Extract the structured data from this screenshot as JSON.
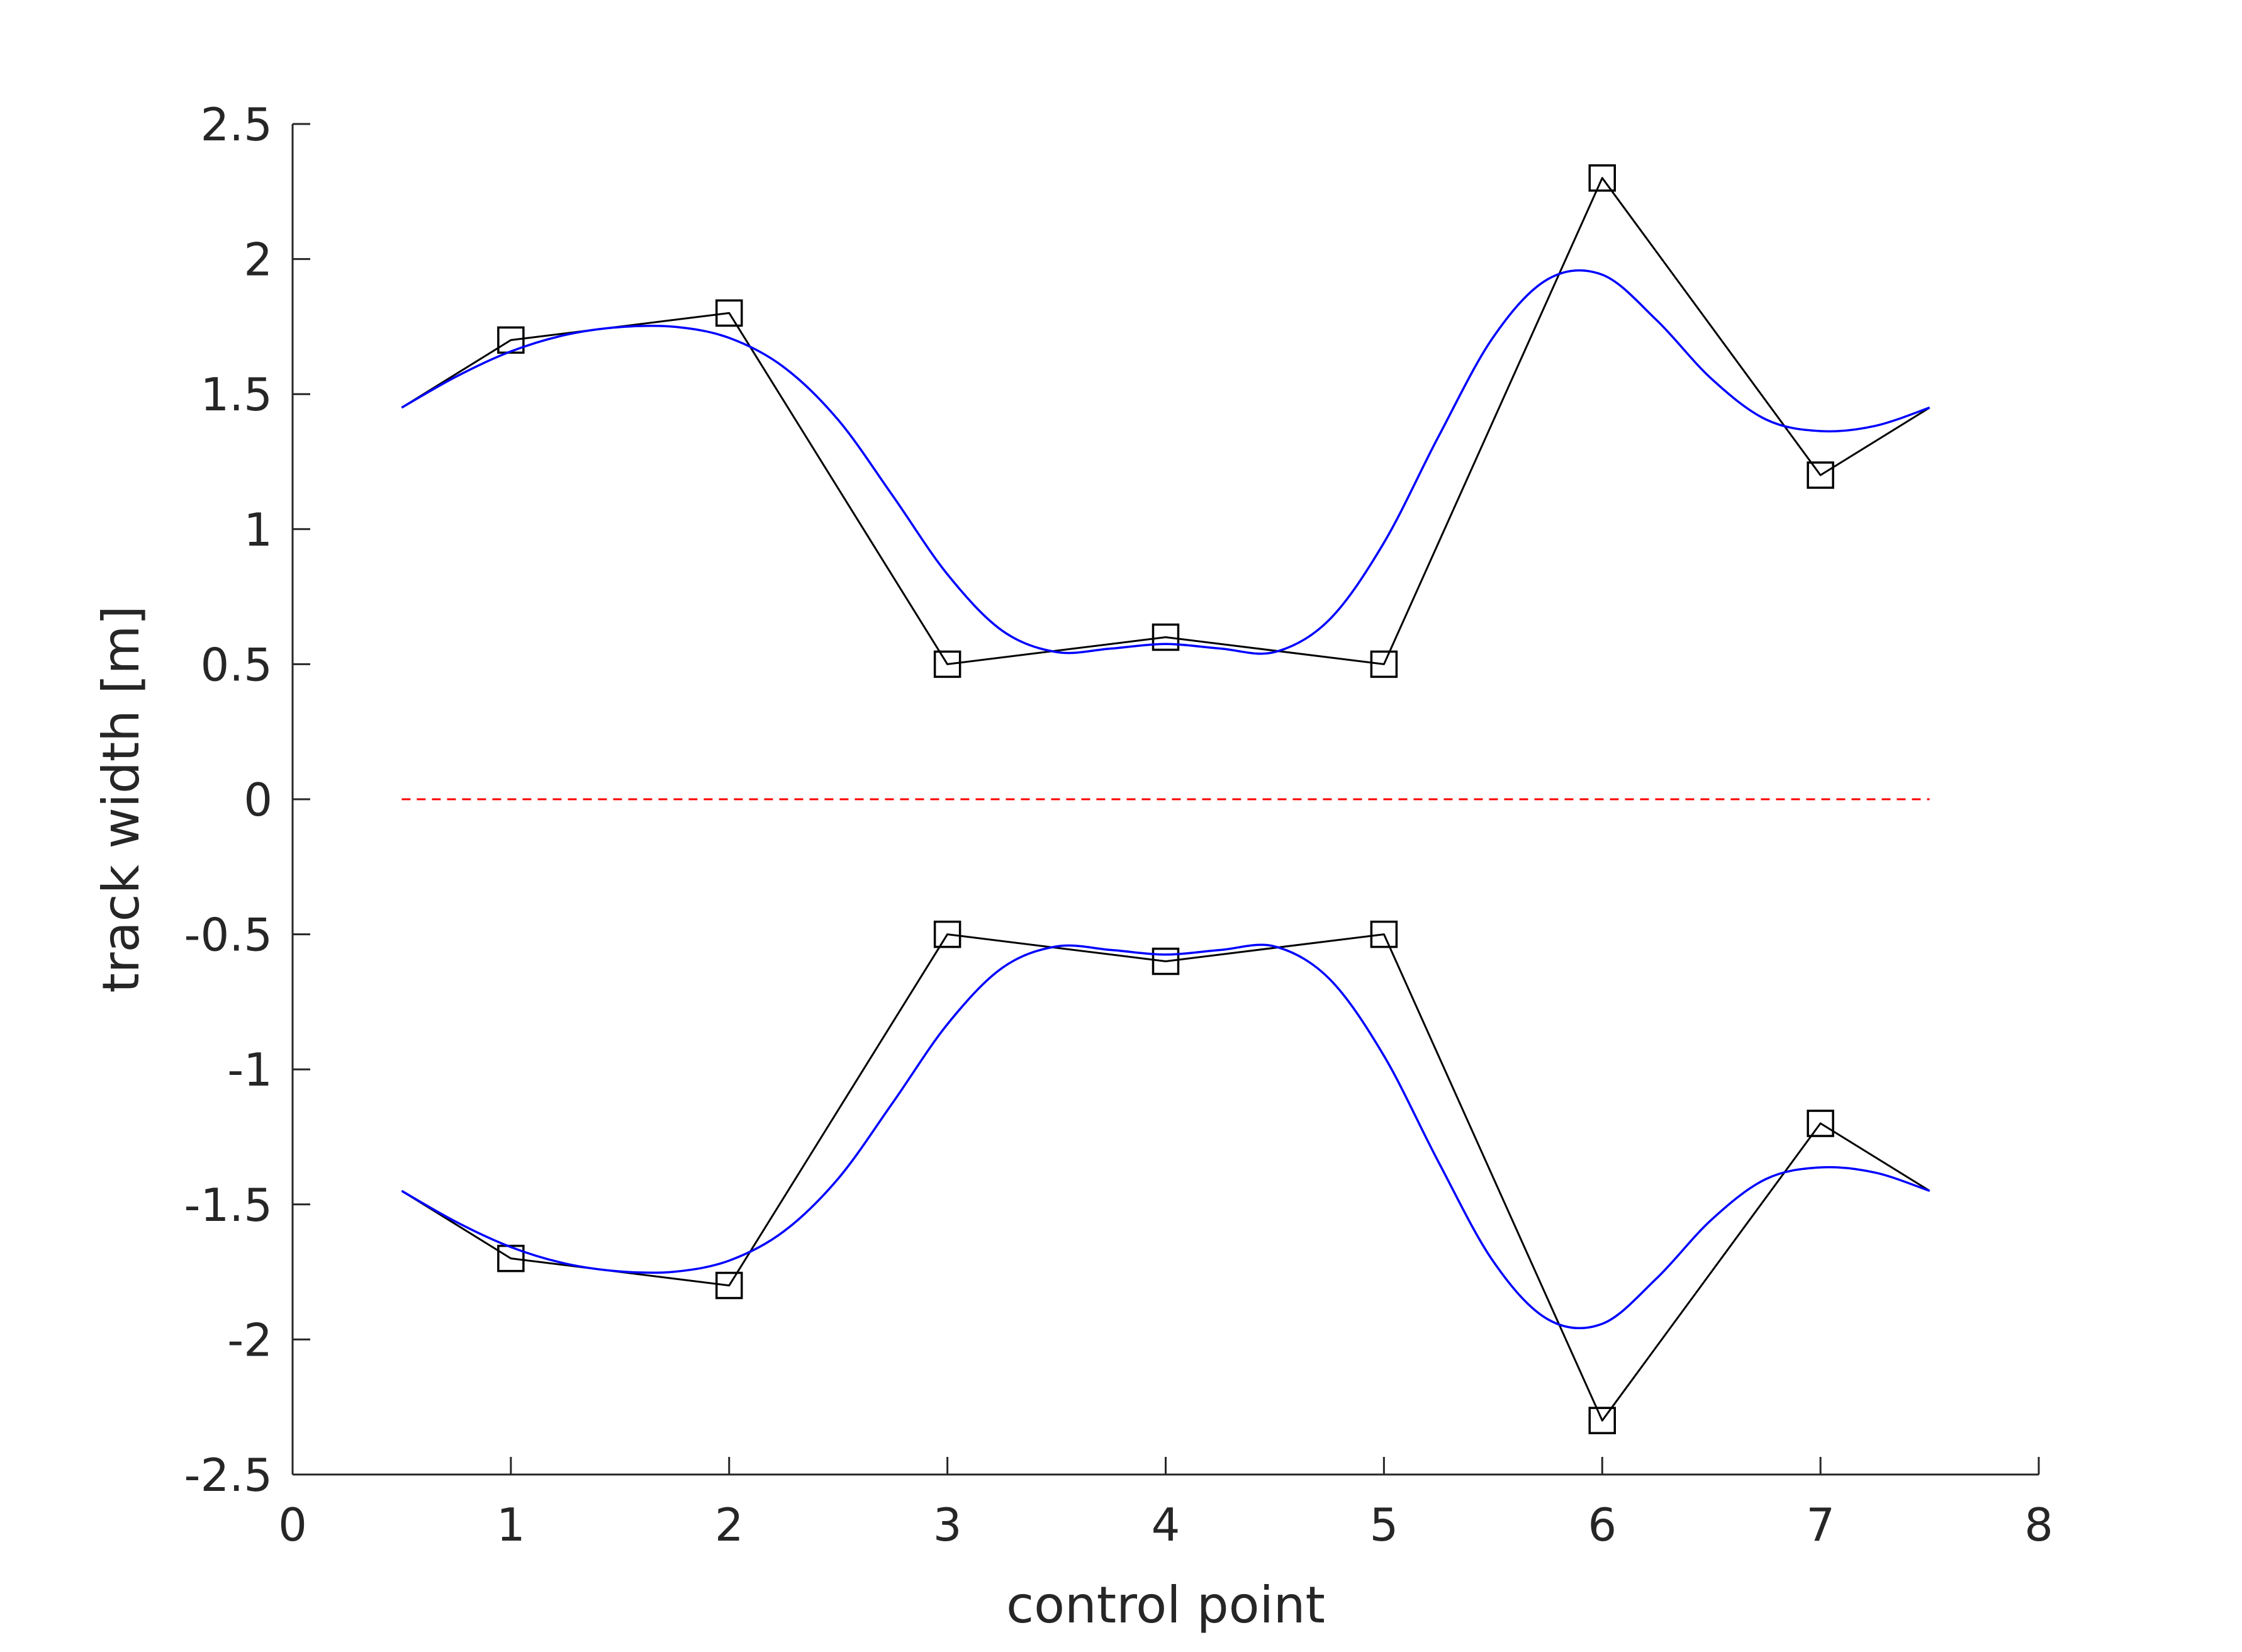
{
  "chart_data": {
    "type": "line",
    "xlabel": "control point",
    "ylabel": "track width [m]",
    "xlim": [
      0,
      8
    ],
    "ylim": [
      -2.5,
      2.5
    ],
    "xticks": [
      0,
      1,
      2,
      3,
      4,
      5,
      6,
      7,
      8
    ],
    "yticks": [
      -2.5,
      -2,
      -1.5,
      -1,
      -0.5,
      0,
      0.5,
      1,
      1.5,
      2,
      2.5
    ],
    "xtick_labels": [
      "0",
      "1",
      "2",
      "3",
      "4",
      "5",
      "6",
      "7",
      "8"
    ],
    "ytick_labels": [
      "-2.5",
      "-2",
      "-1.5",
      "-1",
      "-0.5",
      "0",
      "0.5",
      "1",
      "1.5",
      "2",
      "2.5"
    ],
    "grid": false,
    "colors": {
      "control_polygon": "#000000",
      "spline": "#0000ff",
      "centerline": "#ff0000",
      "axis": "#262626"
    },
    "series": [
      {
        "style": "black line with square markers",
        "x": [
          0.5,
          1,
          2,
          3,
          4,
          5,
          6,
          7,
          7.5
        ],
        "y": [
          1.45,
          1.7,
          1.8,
          0.5,
          0.6,
          0.5,
          2.3,
          1.2,
          1.45
        ],
        "markers_at": [
          1,
          2,
          3,
          4,
          5,
          6,
          7
        ]
      },
      {
        "style": "black line with square markers",
        "x": [
          0.5,
          1,
          2,
          3,
          4,
          5,
          6,
          7,
          7.5
        ],
        "y": [
          -1.45,
          -1.7,
          -1.8,
          -0.5,
          -0.6,
          -0.5,
          -2.3,
          -1.2,
          -1.45
        ],
        "markers_at": [
          1,
          2,
          3,
          4,
          5,
          6,
          7
        ]
      },
      {
        "style": "blue smooth curve",
        "x": [
          0.5,
          0.75,
          1.0,
          1.25,
          1.5,
          1.75,
          2.0,
          2.25,
          2.5,
          2.75,
          3.0,
          3.25,
          3.5,
          3.75,
          4.0,
          4.25,
          4.5,
          4.75,
          5.0,
          5.25,
          5.5,
          5.75,
          6.0,
          6.25,
          6.5,
          6.75,
          7.0,
          7.25,
          7.5
        ],
        "y": [
          1.45,
          1.565,
          1.658,
          1.719,
          1.748,
          1.749,
          1.708,
          1.6,
          1.404,
          1.123,
          0.833,
          0.625,
          0.545,
          0.558,
          0.575,
          0.558,
          0.545,
          0.665,
          0.95,
          1.343,
          1.71,
          1.925,
          1.942,
          1.773,
          1.557,
          1.406,
          1.363,
          1.382,
          1.45
        ]
      },
      {
        "style": "blue smooth curve",
        "x": [
          0.5,
          0.75,
          1.0,
          1.25,
          1.5,
          1.75,
          2.0,
          2.25,
          2.5,
          2.75,
          3.0,
          3.25,
          3.5,
          3.75,
          4.0,
          4.25,
          4.5,
          4.75,
          5.0,
          5.25,
          5.5,
          5.75,
          6.0,
          6.25,
          6.5,
          6.75,
          7.0,
          7.25,
          7.5
        ],
        "y": [
          -1.45,
          -1.565,
          -1.658,
          -1.719,
          -1.748,
          -1.749,
          -1.708,
          -1.6,
          -1.404,
          -1.123,
          -0.833,
          -0.625,
          -0.545,
          -0.558,
          -0.575,
          -0.558,
          -0.545,
          -0.665,
          -0.95,
          -1.343,
          -1.71,
          -1.925,
          -1.942,
          -1.773,
          -1.557,
          -1.406,
          -1.363,
          -1.382,
          -1.45
        ]
      },
      {
        "style": "red dashed line",
        "x": [
          0.5,
          7.5
        ],
        "y": [
          0,
          0
        ]
      }
    ]
  }
}
